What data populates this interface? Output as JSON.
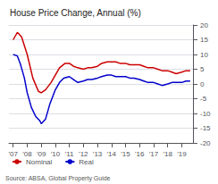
{
  "chart_data": {
    "type": "line",
    "title": "House Price Change, Annual (%)",
    "annotations": [
      "Source: ABSA, Global Property Guide"
    ],
    "series": [
      {
        "name": "Nominal",
        "color": "#cc0000",
        "x": [
          2007.0,
          2007.3,
          2007.6,
          2008.0,
          2008.4,
          2008.8,
          2009.0,
          2009.3,
          2009.7,
          2010.0,
          2010.3,
          2010.7,
          2011.0,
          2011.3,
          2011.6,
          2012.0,
          2012.3,
          2012.6,
          2013.0,
          2013.3,
          2013.7,
          2014.0,
          2014.3,
          2014.6,
          2015.0,
          2015.3,
          2015.6,
          2016.0,
          2016.3,
          2016.6,
          2017.0,
          2017.3,
          2017.6,
          2018.0,
          2018.3,
          2018.6,
          2019.0,
          2019.3,
          2019.6
        ],
        "values": [
          15.0,
          17.5,
          16.0,
          10.0,
          2.0,
          -2.5,
          -3.0,
          -2.0,
          0.5,
          3.0,
          5.5,
          7.0,
          7.0,
          6.0,
          5.5,
          5.0,
          5.5,
          5.5,
          6.0,
          7.0,
          7.5,
          7.5,
          7.5,
          7.0,
          7.0,
          6.5,
          6.5,
          6.5,
          6.0,
          5.5,
          5.5,
          5.0,
          4.5,
          4.5,
          4.0,
          3.5,
          4.0,
          4.5,
          4.5
        ]
      },
      {
        "name": "Real",
        "color": "#0000cc",
        "x": [
          2007.0,
          2007.3,
          2007.5,
          2007.8,
          2008.0,
          2008.3,
          2008.6,
          2008.9,
          2009.0,
          2009.3,
          2009.6,
          2010.0,
          2010.3,
          2010.6,
          2011.0,
          2011.3,
          2011.6,
          2012.0,
          2012.3,
          2012.6,
          2013.0,
          2013.3,
          2013.7,
          2014.0,
          2014.3,
          2014.7,
          2015.0,
          2015.3,
          2015.6,
          2016.0,
          2016.3,
          2016.6,
          2017.0,
          2017.3,
          2017.6,
          2018.0,
          2018.3,
          2018.6,
          2019.0,
          2019.3,
          2019.6
        ],
        "values": [
          10.0,
          9.5,
          7.0,
          2.0,
          -3.0,
          -8.0,
          -11.0,
          -12.5,
          -13.5,
          -12.0,
          -7.0,
          -2.0,
          0.5,
          2.0,
          2.5,
          1.5,
          0.5,
          1.0,
          1.5,
          1.5,
          2.0,
          2.5,
          3.0,
          3.0,
          2.5,
          2.5,
          2.5,
          2.0,
          2.0,
          1.5,
          1.0,
          0.5,
          0.5,
          0.0,
          -0.5,
          0.0,
          0.5,
          0.5,
          0.5,
          1.0,
          1.0
        ]
      }
    ],
    "xlim": [
      2006.7,
      2019.8
    ],
    "xticks": [
      {
        "value": 2007,
        "label": "'07"
      },
      {
        "value": 2008,
        "label": "'08"
      },
      {
        "value": 2009,
        "label": "'09"
      },
      {
        "value": 2010,
        "label": "'10"
      },
      {
        "value": 2011,
        "label": "'11"
      },
      {
        "value": 2012,
        "label": "'12"
      },
      {
        "value": 2013,
        "label": "'13"
      },
      {
        "value": 2014,
        "label": "'14"
      },
      {
        "value": 2015,
        "label": "'15"
      },
      {
        "value": 2016,
        "label": "'16"
      },
      {
        "value": 2017,
        "label": "'17"
      },
      {
        "value": 2018,
        "label": "'18"
      },
      {
        "value": 2019,
        "label": "'19"
      }
    ],
    "ylim": [
      -20,
      20
    ],
    "yticks": [
      -20,
      -15,
      -10,
      -5,
      0,
      5,
      10,
      15,
      20
    ],
    "grid": true,
    "legend": "bottom"
  }
}
